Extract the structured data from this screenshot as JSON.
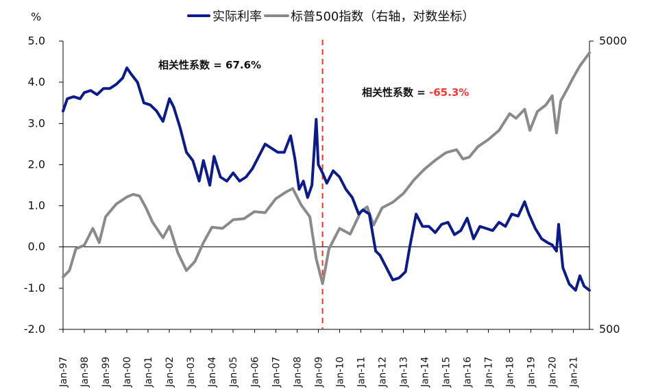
{
  "chart_data": {
    "type": "line",
    "title": "",
    "left_axis": {
      "unit_label": "%",
      "min": -2.0,
      "max": 5.0,
      "ticks": [
        5.0,
        4.0,
        3.0,
        2.0,
        1.0,
        0.0,
        -1.0,
        -2.0
      ],
      "tick_labels": [
        "5.0",
        "4.0",
        "3.0",
        "2.0",
        "1.0",
        "0.0",
        "-1.0",
        "-2.0"
      ]
    },
    "right_axis": {
      "scale": "log",
      "min": 500,
      "max": 5000,
      "ticks": [
        5000,
        500
      ],
      "tick_labels": [
        "5000",
        "500"
      ]
    },
    "x_axis": {
      "start_year": 1997,
      "end_year": 2021.75,
      "tick_labels": [
        "Jan-97",
        "Jan-98",
        "Jan-99",
        "Jan-00",
        "Jan-01",
        "Jan-02",
        "Jan-03",
        "Jan-04",
        "Jan-05",
        "Jan-06",
        "Jan-07",
        "Jan-08",
        "Jan-09",
        "Jan-10",
        "Jan-11",
        "Jan-12",
        "Jan-13",
        "Jan-14",
        "Jan-15",
        "Jan-16",
        "Jan-17",
        "Jan-18",
        "Jan-19",
        "Jan-20",
        "Jan-21"
      ],
      "tick_years": [
        1997,
        1998,
        1999,
        2000,
        2001,
        2002,
        2003,
        2004,
        2005,
        2006,
        2007,
        2008,
        2009,
        2010,
        2011,
        2012,
        2013,
        2014,
        2015,
        2016,
        2017,
        2018,
        2019,
        2020,
        2021
      ]
    },
    "legend": {
      "placement": "top",
      "entries": [
        {
          "label": "实际利率",
          "color": "#0b1b8c"
        },
        {
          "label": "标普500指数（右轴，对数坐标）",
          "color": "#8a8a8a"
        }
      ]
    },
    "vertical_marker": {
      "x": 2009.2,
      "color": "#ff2a2a",
      "style": "dashed"
    },
    "annotations": [
      {
        "text_before": "相关性系数 = ",
        "value": "67.6%",
        "value_color": "#111111"
      },
      {
        "text_before": "相关性系数 = ",
        "value": "-65.3%",
        "value_color": "#ff3333"
      }
    ],
    "series": [
      {
        "name": "实际利率",
        "axis": "left",
        "color": "#0b1b8c",
        "x": [
          1997.0,
          1997.2,
          1997.5,
          1997.8,
          1998.0,
          1998.3,
          1998.6,
          1998.9,
          1999.2,
          1999.5,
          1999.8,
          2000.0,
          2000.2,
          2000.5,
          2000.8,
          2001.1,
          2001.4,
          2001.7,
          2002.0,
          2002.2,
          2002.5,
          2002.8,
          2003.1,
          2003.4,
          2003.6,
          2003.9,
          2004.1,
          2004.4,
          2004.7,
          2005.0,
          2005.3,
          2005.6,
          2005.9,
          2006.2,
          2006.5,
          2006.8,
          2007.1,
          2007.4,
          2007.7,
          2007.9,
          2008.1,
          2008.3,
          2008.5,
          2008.7,
          2008.9,
          2009.0,
          2009.2,
          2009.4,
          2009.7,
          2010.0,
          2010.3,
          2010.6,
          2010.9,
          2011.1,
          2011.4,
          2011.7,
          2011.9,
          2012.2,
          2012.5,
          2012.8,
          2013.1,
          2013.3,
          2013.6,
          2013.9,
          2014.2,
          2014.5,
          2014.8,
          2015.1,
          2015.4,
          2015.7,
          2016.0,
          2016.3,
          2016.6,
          2016.9,
          2017.2,
          2017.5,
          2017.8,
          2018.1,
          2018.4,
          2018.7,
          2018.9,
          2019.2,
          2019.5,
          2019.8,
          2020.0,
          2020.2,
          2020.3,
          2020.5,
          2020.8,
          2021.1,
          2021.3,
          2021.5,
          2021.75
        ],
        "values": [
          3.3,
          3.6,
          3.65,
          3.6,
          3.75,
          3.8,
          3.7,
          3.85,
          3.85,
          3.95,
          4.1,
          4.35,
          4.2,
          4.0,
          3.5,
          3.45,
          3.3,
          3.05,
          3.6,
          3.4,
          2.9,
          2.3,
          2.1,
          1.6,
          2.1,
          1.5,
          2.2,
          1.7,
          1.6,
          1.8,
          1.6,
          1.7,
          1.9,
          2.2,
          2.5,
          2.4,
          2.3,
          2.3,
          2.7,
          2.15,
          1.4,
          1.6,
          1.2,
          1.5,
          3.1,
          2.0,
          1.8,
          1.55,
          1.85,
          1.7,
          1.4,
          1.2,
          0.8,
          0.9,
          0.8,
          -0.1,
          -0.2,
          -0.5,
          -0.8,
          -0.75,
          -0.6,
          0.0,
          0.8,
          0.5,
          0.5,
          0.35,
          0.55,
          0.6,
          0.3,
          0.4,
          0.7,
          0.2,
          0.5,
          0.45,
          0.4,
          0.6,
          0.5,
          0.8,
          0.75,
          1.1,
          0.8,
          0.45,
          0.2,
          0.1,
          0.05,
          -0.1,
          0.55,
          -0.5,
          -0.9,
          -1.05,
          -0.7,
          -0.95,
          -1.05
        ]
      },
      {
        "name": "标普500指数（右轴，对数坐标）",
        "axis": "right",
        "color": "#8a8a8a",
        "x": [
          1997.0,
          1997.3,
          1997.6,
          1998.0,
          1998.4,
          1998.7,
          1999.0,
          1999.5,
          2000.0,
          2000.3,
          2000.6,
          2000.9,
          2001.2,
          2001.7,
          2002.0,
          2002.4,
          2002.8,
          2003.2,
          2003.6,
          2004.0,
          2004.5,
          2005.0,
          2005.5,
          2006.0,
          2006.5,
          2007.0,
          2007.5,
          2007.8,
          2008.2,
          2008.6,
          2008.9,
          2009.2,
          2009.5,
          2010.0,
          2010.5,
          2011.0,
          2011.3,
          2011.6,
          2012.0,
          2012.5,
          2013.0,
          2013.5,
          2014.0,
          2014.5,
          2015.0,
          2015.5,
          2015.8,
          2016.1,
          2016.5,
          2017.0,
          2017.5,
          2018.0,
          2018.3,
          2018.7,
          2018.95,
          2019.3,
          2019.7,
          2020.0,
          2020.2,
          2020.4,
          2020.7,
          2021.0,
          2021.3,
          2021.75
        ],
        "values": [
          760,
          800,
          950,
          980,
          1120,
          1000,
          1230,
          1360,
          1440,
          1470,
          1450,
          1320,
          1180,
          1040,
          1140,
          920,
          800,
          860,
          1000,
          1130,
          1120,
          1200,
          1210,
          1280,
          1270,
          1420,
          1500,
          1540,
          1350,
          1230,
          880,
          720,
          950,
          1120,
          1070,
          1280,
          1330,
          1150,
          1320,
          1380,
          1480,
          1650,
          1800,
          1930,
          2050,
          2100,
          1950,
          1980,
          2150,
          2280,
          2450,
          2800,
          2700,
          2900,
          2450,
          2850,
          3000,
          3230,
          2400,
          3100,
          3400,
          3750,
          4100,
          4550
        ]
      }
    ]
  }
}
